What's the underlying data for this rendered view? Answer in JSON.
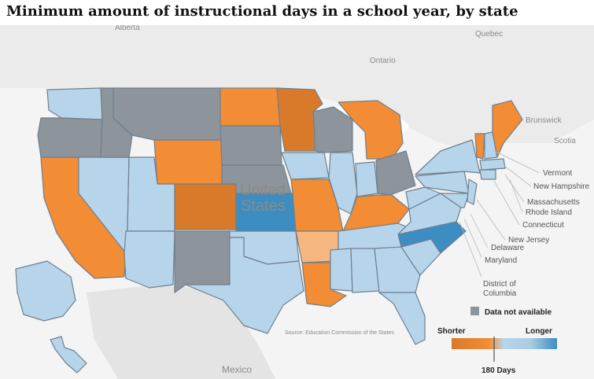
{
  "title": "Minimum amount of instructional days in a school year, by state",
  "source": "Source: Education Commission of the States",
  "colors": {
    "shorter_strong": "#d97a2a",
    "shorter": "#f28c35",
    "shorter_light": "#f5b77f",
    "baseline": "#b7d5ea",
    "longer": "#3c8dc2",
    "na": "#8d949b",
    "land": "#e6e6e6",
    "water": "#ffffff"
  },
  "geo_labels": {
    "alberta": "Alberta",
    "quebec": "Quebec",
    "ontario": "Ontario",
    "brunswick": "Brunswick",
    "scotia": "Scotia",
    "united": "United",
    "states": "States",
    "mexico": "Mexico"
  },
  "callouts": {
    "vermont": "Vermont",
    "new_hampshire": "New Hampshire",
    "massachusetts": "Massachusetts",
    "rhode_island": "Rhode Island",
    "connecticut": "Connecticut",
    "new_jersey": "New Jersey",
    "delaware": "Delaware",
    "maryland": "Maryland",
    "district_line1": "District of",
    "district_line2": "Columbia"
  },
  "legend": {
    "na_label": "Data not available",
    "shorter": "Shorter",
    "longer": "Longer",
    "marker": "180 Days"
  }
}
